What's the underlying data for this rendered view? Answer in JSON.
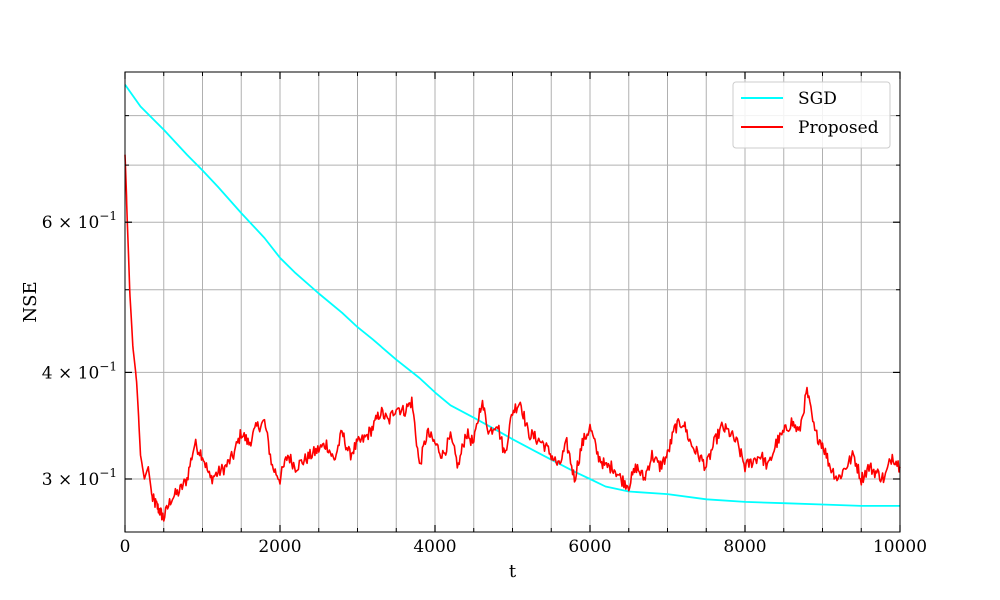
{
  "chart_data": {
    "type": "line",
    "title": "",
    "xlabel": "t",
    "ylabel": "NSE",
    "xlim": [
      0,
      10000
    ],
    "ylim": [
      0.26,
      0.9
    ],
    "yscale": "log",
    "grid": true,
    "legend": "top-right",
    "x_ticks": [
      0,
      2000,
      4000,
      6000,
      8000,
      10000
    ],
    "x_tick_labels": [
      "0",
      "2000",
      "4000",
      "6000",
      "8000",
      "10000"
    ],
    "x_minor_ticks": [
      500,
      1000,
      1500,
      2500,
      3000,
      3500,
      4500,
      5000,
      5500,
      6500,
      7000,
      7500,
      8500,
      9000,
      9500
    ],
    "y_ticks": [
      0.3,
      0.4,
      0.6
    ],
    "y_tick_labels": [
      {
        "base": "3 × 10",
        "exp": "−1"
      },
      {
        "base": "4 × 10",
        "exp": "−1"
      },
      {
        "base": "6 × 10",
        "exp": "−1"
      }
    ],
    "y_minor_ticks": [
      0.5,
      0.7,
      0.8
    ],
    "series": [
      {
        "name": "SGD",
        "color": "#00ffff",
        "x": [
          0,
          200,
          500,
          800,
          1000,
          1200,
          1500,
          1800,
          2000,
          2200,
          2500,
          2800,
          3000,
          3200,
          3500,
          3800,
          4000,
          4200,
          4500,
          4800,
          5000,
          5300,
          5500,
          5800,
          6000,
          6200,
          6500,
          7000,
          7500,
          8000,
          8500,
          9000,
          9500,
          10000
        ],
        "y": [
          0.87,
          0.82,
          0.77,
          0.72,
          0.69,
          0.66,
          0.615,
          0.575,
          0.545,
          0.523,
          0.495,
          0.47,
          0.452,
          0.437,
          0.414,
          0.394,
          0.379,
          0.366,
          0.354,
          0.342,
          0.334,
          0.323,
          0.316,
          0.306,
          0.3,
          0.294,
          0.29,
          0.288,
          0.284,
          0.282,
          0.281,
          0.28,
          0.279,
          0.279
        ]
      },
      {
        "name": "Proposed",
        "color": "#ff0000",
        "x": [
          0,
          30,
          60,
          100,
          150,
          200,
          250,
          300,
          350,
          400,
          450,
          500,
          600,
          700,
          800,
          900,
          1000,
          1100,
          1200,
          1300,
          1400,
          1500,
          1600,
          1700,
          1800,
          1900,
          2000,
          2100,
          2200,
          2300,
          2400,
          2500,
          2600,
          2700,
          2800,
          2900,
          3000,
          3100,
          3200,
          3300,
          3400,
          3500,
          3600,
          3700,
          3800,
          3900,
          4000,
          4100,
          4200,
          4300,
          4400,
          4500,
          4600,
          4700,
          4800,
          4900,
          5000,
          5100,
          5200,
          5300,
          5400,
          5500,
          5600,
          5700,
          5800,
          5900,
          6000,
          6100,
          6200,
          6300,
          6400,
          6500,
          6600,
          6700,
          6800,
          6900,
          7000,
          7100,
          7200,
          7300,
          7400,
          7500,
          7600,
          7700,
          7800,
          7900,
          8000,
          8100,
          8200,
          8300,
          8400,
          8500,
          8600,
          8700,
          8800,
          8900,
          9000,
          9100,
          9200,
          9300,
          9400,
          9500,
          9600,
          9700,
          9800,
          9900,
          10000
        ],
        "y": [
          0.72,
          0.6,
          0.5,
          0.43,
          0.39,
          0.32,
          0.3,
          0.31,
          0.285,
          0.28,
          0.275,
          0.27,
          0.285,
          0.29,
          0.3,
          0.33,
          0.32,
          0.3,
          0.305,
          0.31,
          0.32,
          0.34,
          0.33,
          0.345,
          0.35,
          0.31,
          0.3,
          0.32,
          0.31,
          0.315,
          0.32,
          0.325,
          0.33,
          0.315,
          0.34,
          0.32,
          0.33,
          0.335,
          0.345,
          0.36,
          0.35,
          0.365,
          0.36,
          0.37,
          0.31,
          0.34,
          0.33,
          0.32,
          0.335,
          0.31,
          0.34,
          0.33,
          0.37,
          0.34,
          0.35,
          0.32,
          0.36,
          0.37,
          0.34,
          0.335,
          0.33,
          0.32,
          0.31,
          0.33,
          0.3,
          0.33,
          0.345,
          0.32,
          0.31,
          0.31,
          0.3,
          0.295,
          0.31,
          0.3,
          0.32,
          0.31,
          0.32,
          0.345,
          0.35,
          0.33,
          0.32,
          0.31,
          0.33,
          0.345,
          0.34,
          0.33,
          0.31,
          0.315,
          0.32,
          0.31,
          0.33,
          0.34,
          0.35,
          0.34,
          0.38,
          0.34,
          0.33,
          0.31,
          0.3,
          0.31,
          0.32,
          0.3,
          0.31,
          0.305,
          0.3,
          0.32,
          0.31
        ]
      }
    ]
  }
}
